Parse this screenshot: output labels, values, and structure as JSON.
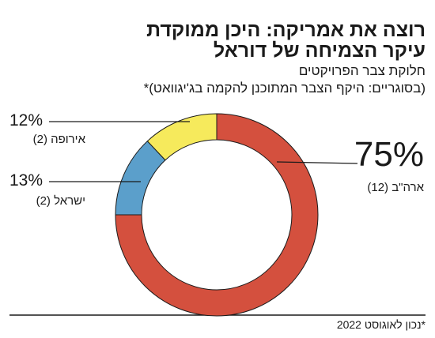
{
  "chart_data": {
    "type": "donut",
    "title": [
      "רוצה את אמריקה: היכן ממוקדת",
      "עיקר הצמיחה של דוראל"
    ],
    "subtitle": [
      "חלוקת צבר הפרויקטים",
      "(בסוגריים: היקף הצבר המתוכנן להקמה בג'יגוואט)*"
    ],
    "categories": [
      "ארה\"ב (12)",
      "ישראל (2)",
      "אירופה (2)"
    ],
    "values": [
      75,
      13,
      12
    ],
    "value_labels": [
      "75%",
      "13%",
      "12%"
    ],
    "colors": [
      "#d4503e",
      "#5b9fcb",
      "#f6ea5c"
    ],
    "note": "*נכון לאוגוסט 2022"
  }
}
